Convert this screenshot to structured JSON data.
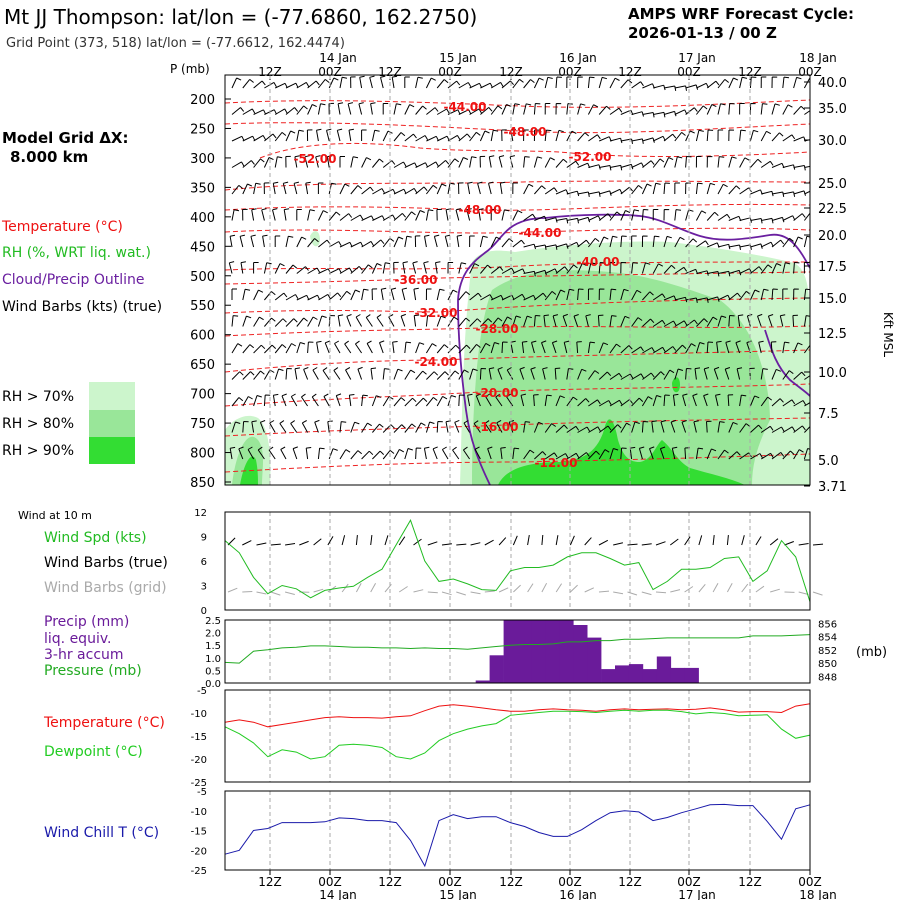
{
  "header": {
    "title": "Mt JJ Thompson:  lat/lon = (-77.6860, 162.2750)",
    "subtitle": "Grid Point (373, 518) lat/lon = (-77.6612, 162.4474)",
    "cycle_label": "AMPS WRF Forecast Cycle:",
    "cycle_value": "2026-01-13 / 00  Z",
    "grid_label": "Model Grid ΔX:",
    "grid_value": "8.000 km"
  },
  "colors": {
    "temperature": "#ee1111",
    "rh": "#22bb22",
    "cloud": "#6a1fa0",
    "precip": "#6a1b9a",
    "pressure": "#22aa22",
    "dewpoint": "#22cc22",
    "windchill": "#1a1aaa",
    "grid": "#aaaaaa",
    "rh70": "#ccf5cc",
    "rh80": "#99e699",
    "rh90": "#33dd33"
  },
  "time_axis": {
    "top_hours": [
      "12Z",
      "00Z",
      "12Z",
      "00Z",
      "12Z",
      "00Z",
      "12Z",
      "00Z",
      "12Z",
      "00Z"
    ],
    "top_dates": [
      "14 Jan",
      "15 Jan",
      "16 Jan",
      "17 Jan",
      "18 Jan"
    ],
    "bottom_hours": [
      "12Z",
      "00Z",
      "12Z",
      "00Z",
      "12Z",
      "00Z",
      "12Z",
      "00Z",
      "12Z",
      "00Z"
    ],
    "bottom_dates": [
      "14 Jan",
      "15 Jan",
      "16 Jan",
      "17 Jan",
      "18 Jan"
    ]
  },
  "legend": {
    "temperature": "Temperature (°C)",
    "rh": "RH (%, WRT liq. wat.)",
    "cloud": "Cloud/Precip Outline",
    "wind": "Wind Barbs (kts) (true)",
    "rh70": "RH > 70%",
    "rh80": "RH > 80%",
    "rh90": "RH > 90%"
  },
  "chart_data": [
    {
      "type": "cross-section",
      "id": "upper-air",
      "ylabel": "P (mb)",
      "pressure_levels": [
        "200",
        "250",
        "300",
        "350",
        "400",
        "450",
        "500",
        "550",
        "600",
        "650",
        "700",
        "750",
        "800",
        "850"
      ],
      "right_axis_label": "Kft MSL",
      "height_ticks": [
        "40.0",
        "35.0",
        "30.0",
        "25.0",
        "22.5",
        "20.0",
        "17.5",
        "15.0",
        "12.5",
        "10.0",
        "7.5",
        "5.0",
        "3.71"
      ],
      "temperature_contour_labels": [
        "-44.00",
        "-48.00",
        "-52.00",
        "-52.00",
        "-48.00",
        "-44.00",
        "-40.00",
        "-36.00",
        "-32.00",
        "-28.00",
        "-24.00",
        "-20.00",
        "-16.00",
        "-12.00"
      ]
    },
    {
      "type": "line",
      "id": "wind-10m",
      "title": "Wind at 10 m",
      "series_labels": [
        "Wind Spd (kts)",
        "Wind Barbs (true)",
        "Wind Barbs (grid)"
      ],
      "y_ticks": [
        "12",
        "9",
        "6",
        "3",
        "0"
      ],
      "ylim": [
        0,
        12
      ],
      "wind_speed_kts": [
        8.5,
        7,
        4,
        2,
        3,
        2.6,
        1.5,
        2.4,
        2.7,
        2.9,
        4,
        5,
        8,
        11,
        6,
        3.5,
        3.8,
        3.2,
        2.5,
        2.4,
        4.8,
        5.2,
        5.2,
        5.5,
        6.5,
        7,
        7,
        6.3,
        5.5,
        5.8,
        2.5,
        3.5,
        5,
        5,
        5.2,
        6.3,
        6.5,
        3.5,
        4.8,
        8.5,
        6.5,
        1
      ]
    },
    {
      "type": "bar",
      "id": "precip-pressure",
      "series_labels": [
        "Precip (mm)",
        "liq. equiv.",
        "3-hr accum",
        "Pressure (mb)"
      ],
      "y_ticks_left": [
        "2.5",
        "2.0",
        "1.5",
        "1.0",
        "0.5",
        "0.0"
      ],
      "ylim_left": [
        0,
        2.5
      ],
      "y_ticks_right": [
        "856",
        "854",
        "852",
        "850",
        "848"
      ],
      "ylim_right": [
        847,
        856.5
      ],
      "right_unit": "(mb)",
      "precip_mm": [
        0,
        0,
        0,
        0,
        0,
        0,
        0,
        0,
        0,
        0,
        0,
        0,
        0,
        0,
        0,
        0,
        0,
        0,
        0.1,
        1.1,
        2.5,
        2.5,
        2.5,
        2.5,
        2.5,
        2.3,
        1.8,
        0.55,
        0.7,
        0.75,
        0.55,
        1.05,
        0.6,
        0.6,
        0,
        0,
        0,
        0,
        0,
        0,
        0,
        0
      ],
      "pressure_mb": [
        850.1,
        850,
        851.8,
        852,
        852.3,
        852.4,
        852.6,
        852.6,
        852.5,
        852.4,
        852.4,
        852.3,
        852.3,
        852.2,
        852.3,
        852.2,
        852.2,
        852.1,
        852.3,
        852.5,
        852.7,
        852.8,
        852.8,
        852.9,
        853.2,
        853.2,
        853.4,
        853.4,
        853.6,
        853.6,
        853.7,
        853.8,
        853.8,
        853.8,
        853.8,
        853.8,
        853.8,
        854.1,
        854.1,
        854.1,
        854.2,
        854.3
      ]
    },
    {
      "type": "line",
      "id": "temp-dewpoint",
      "series_labels": [
        "Temperature (°C)",
        "Dewpoint (°C)"
      ],
      "y_ticks": [
        "-5",
        "-10",
        "-15",
        "-20",
        "-25"
      ],
      "ylim": [
        -25,
        -5
      ],
      "temperature_c": [
        -12,
        -11.5,
        -12,
        -13,
        -12.5,
        -12,
        -11.5,
        -11,
        -10.8,
        -11,
        -11,
        -11.1,
        -10.8,
        -10.6,
        -9.5,
        -8.5,
        -8.2,
        -8.5,
        -8.9,
        -9.3,
        -9.6,
        -9.6,
        -9.3,
        -9.1,
        -9.3,
        -9.4,
        -9.6,
        -9.3,
        -9.1,
        -9.3,
        -9.2,
        -9.1,
        -9.3,
        -9.2,
        -8.9,
        -9.3,
        -9.8,
        -9.7,
        -9.7,
        -9.9,
        -8.5,
        -8
      ],
      "dewpoint_c": [
        -13,
        -14.5,
        -16.5,
        -19.5,
        -18,
        -18.5,
        -20,
        -19.5,
        -17,
        -16.8,
        -17,
        -17.5,
        -19.5,
        -20,
        -18.7,
        -16,
        -14.5,
        -13.5,
        -12.8,
        -12.3,
        -10.5,
        -10.2,
        -9.9,
        -9.6,
        -9.6,
        -9.7,
        -9.9,
        -9.6,
        -9.4,
        -9.6,
        -9.4,
        -9.4,
        -9.7,
        -10.2,
        -9.9,
        -10.1,
        -10.6,
        -10.5,
        -10.4,
        -13.5,
        -15.5,
        -14.8
      ]
    },
    {
      "type": "line",
      "id": "wind-chill",
      "series_labels": [
        "Wind Chill T (°C)"
      ],
      "y_ticks": [
        "-5",
        "-10",
        "-15",
        "-20",
        "-25"
      ],
      "ylim": [
        -25,
        -5
      ],
      "windchill_c": [
        -21,
        -20,
        -15,
        -14.5,
        -13,
        -13,
        -13,
        -12.8,
        -11.8,
        -12,
        -12.5,
        -12.5,
        -13,
        -17.5,
        -24,
        -12.5,
        -11,
        -12,
        -11.5,
        -11.5,
        -13,
        -14,
        -15.5,
        -16.5,
        -16.5,
        -14.8,
        -12.5,
        -10.5,
        -10,
        -10.3,
        -12.5,
        -11.7,
        -10.5,
        -9.5,
        -8.5,
        -8.4,
        -8.7,
        -8.7,
        -12.7,
        -17.2,
        -9.5,
        -8.5
      ]
    }
  ]
}
